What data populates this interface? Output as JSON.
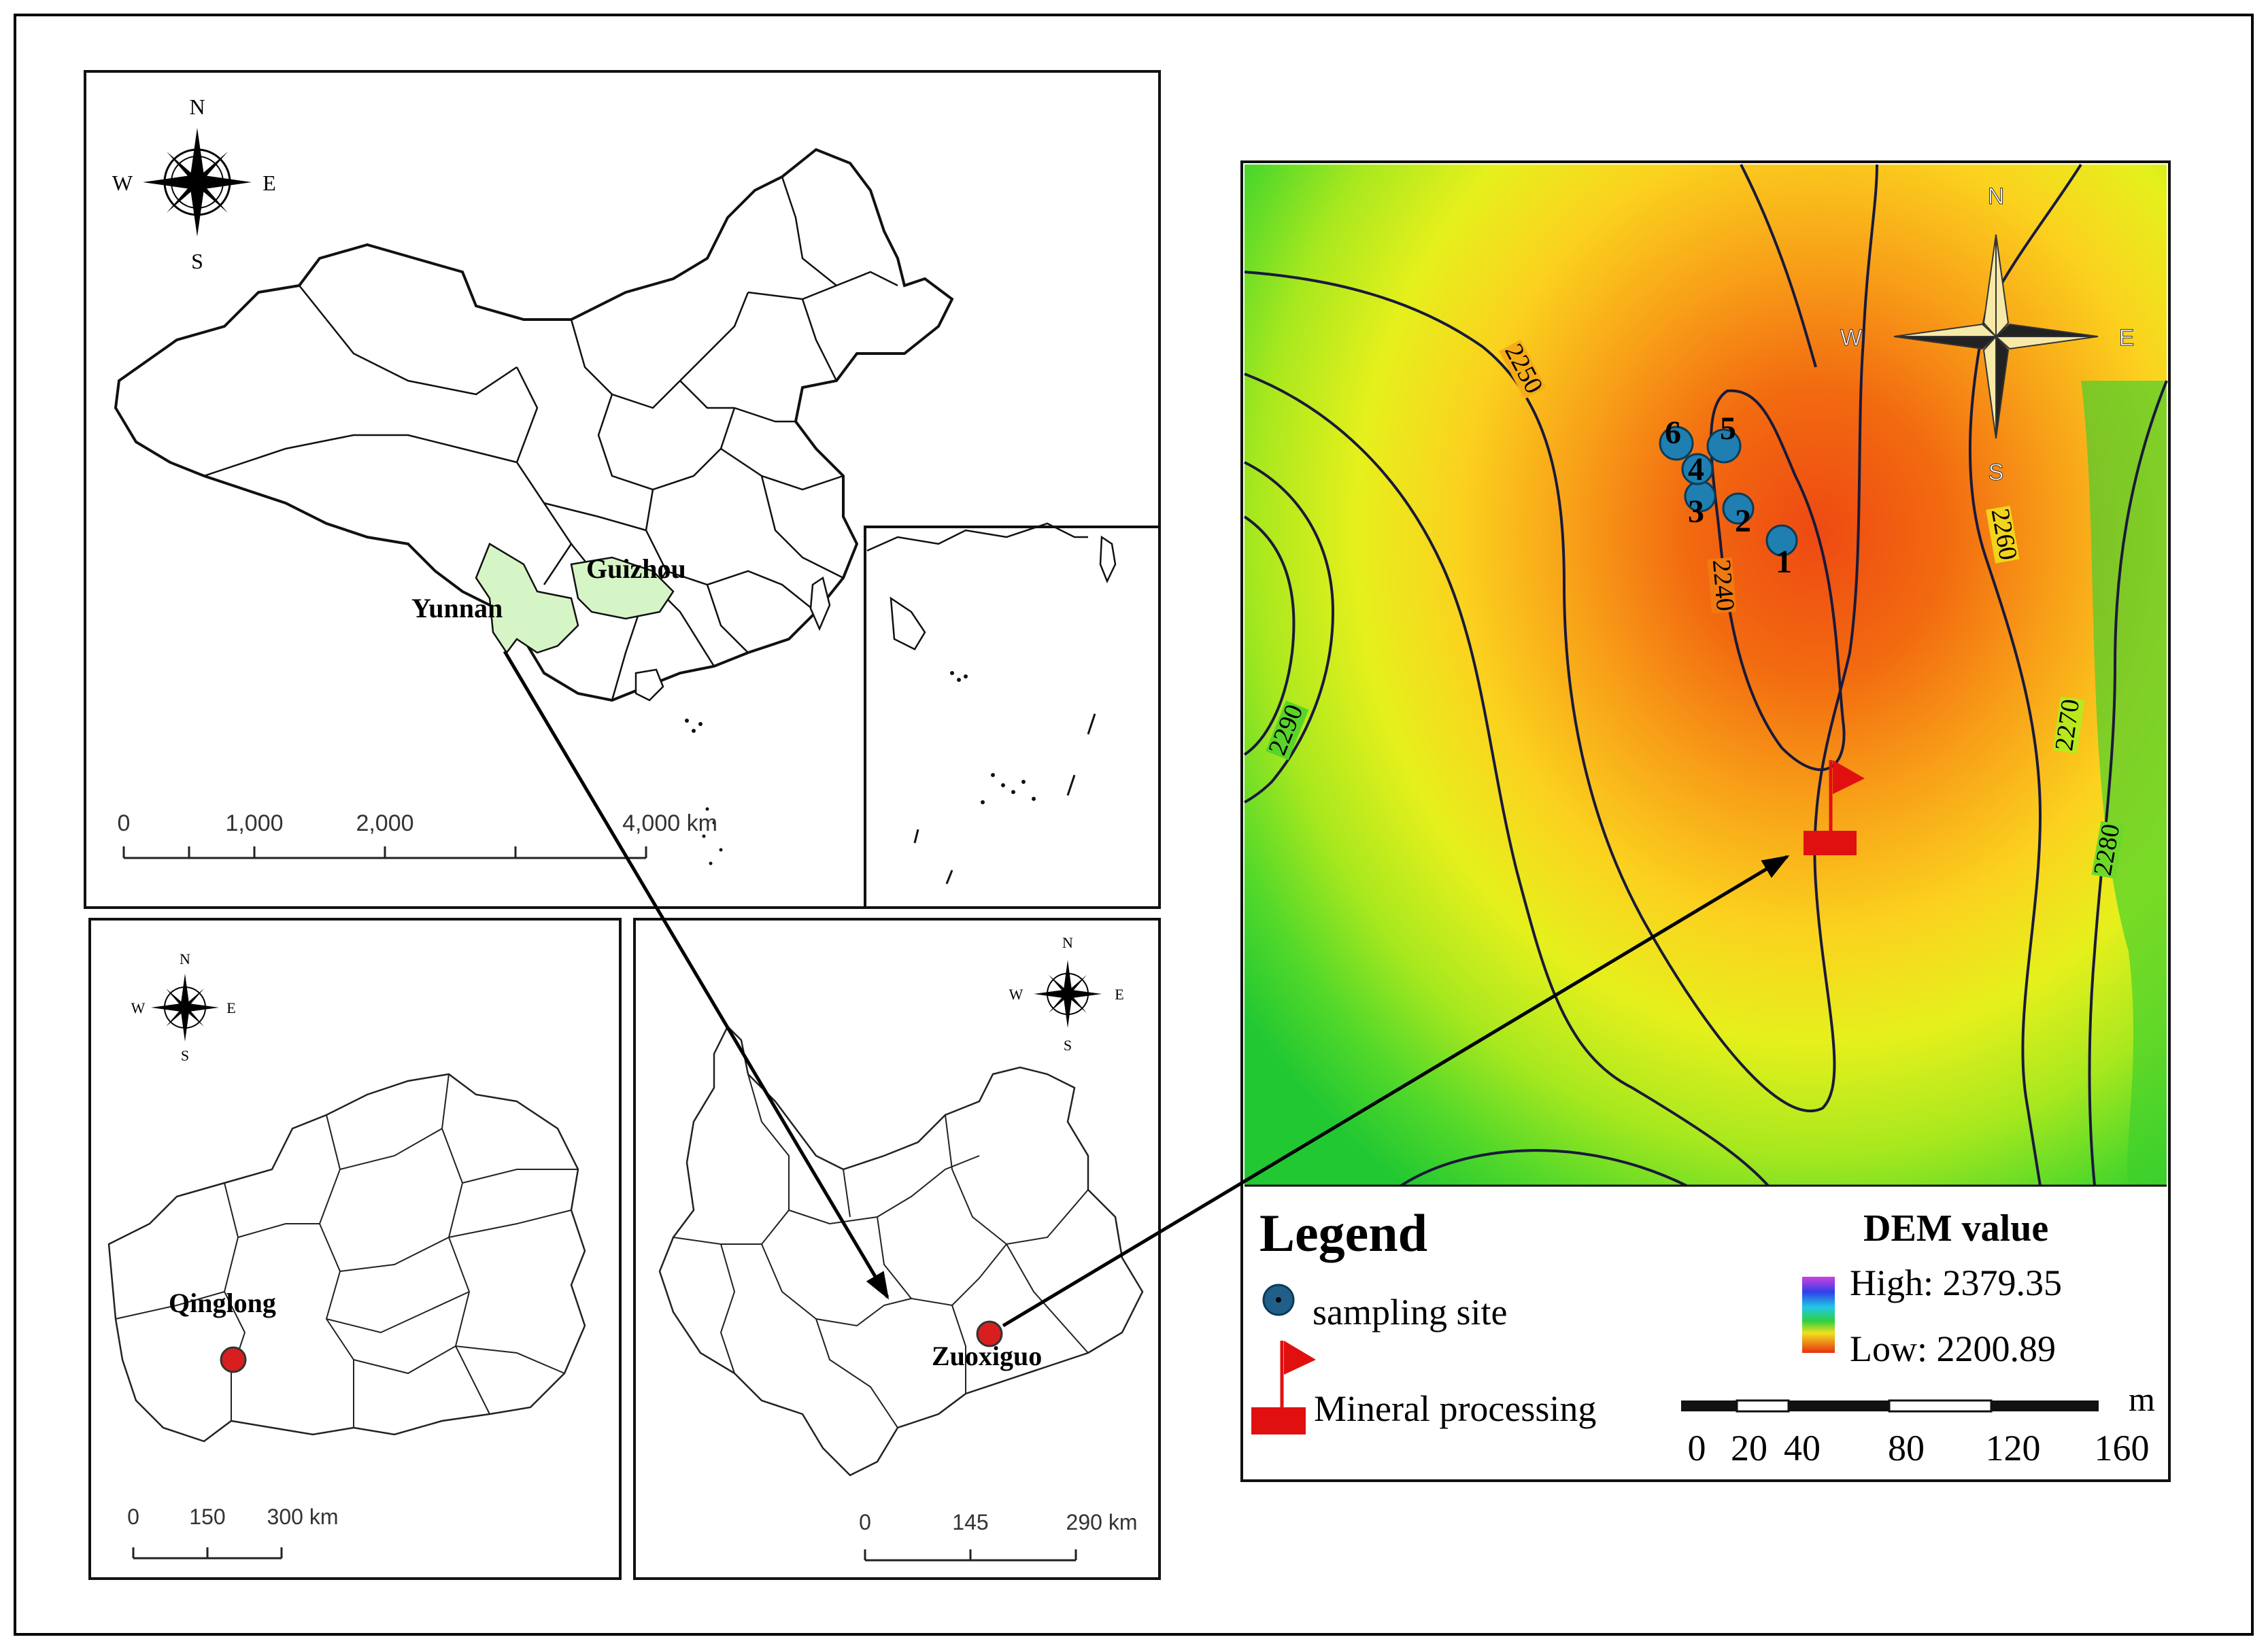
{
  "china_map": {
    "compass": {
      "n": "N",
      "s": "S",
      "e": "E",
      "w": "W"
    },
    "province_labels": {
      "yunnan": "Yunnan",
      "guizhou": "Guizhou"
    },
    "scale_bar": {
      "ticks": [
        "0",
        "1,000",
        "2,000",
        "4,000 km"
      ]
    }
  },
  "guizhou_map": {
    "compass": {
      "n": "N",
      "s": "S",
      "e": "E",
      "w": "W"
    },
    "site_label": "Qinglong",
    "scale_bar": {
      "ticks": [
        "0",
        "150",
        "300 km"
      ]
    }
  },
  "yunnan_map": {
    "compass": {
      "n": "N",
      "s": "S",
      "e": "E",
      "w": "W"
    },
    "site_label": "Zuoxiguo",
    "scale_bar": {
      "ticks": [
        "0",
        "145",
        "290 km"
      ]
    }
  },
  "dem_map": {
    "compass": {
      "n": "N",
      "s": "S",
      "e": "E",
      "w": "W"
    },
    "contours": [
      "2250",
      "2240",
      "2260",
      "2290",
      "2270",
      "2280"
    ],
    "sampling_sites": [
      "1",
      "2",
      "3",
      "4",
      "5",
      "6"
    ],
    "legend": {
      "title": "Legend",
      "sampling_site": "sampling site",
      "mineral_processing": "Mineral processing",
      "dem_title": "DEM value",
      "dem_high": "High: 2379.35",
      "dem_low": "Low: 2200.89",
      "scale_unit": "m",
      "scale_ticks": [
        "0",
        "20",
        "40",
        "80",
        "120",
        "160"
      ]
    }
  },
  "colors": {
    "province_highlight": "#d6f5c6",
    "site_marker": "#d81e1e",
    "sampling_marker": "#1f7fb0",
    "flag_red": "#e01010"
  }
}
